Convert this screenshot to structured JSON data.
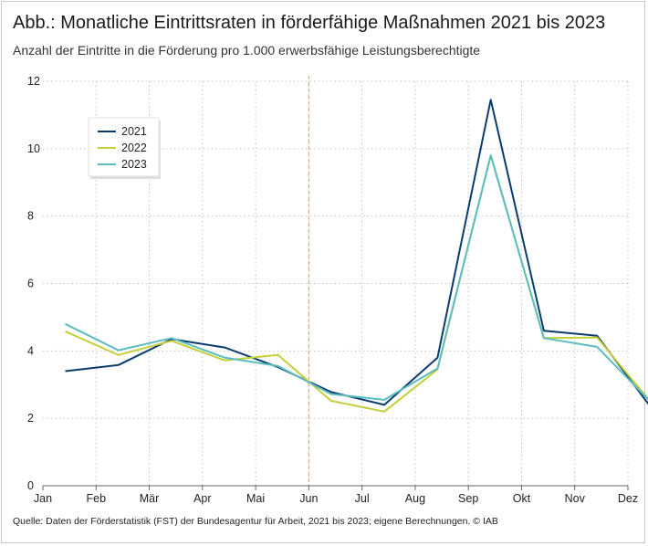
{
  "title": "Abb.: Monatliche Eintrittsraten in förderfähige Maßnahmen 2021 bis 2023",
  "subtitle": "Anzahl der Eintritte in die Förderung pro 1.000 erwerbsfähige Leistungsberechtigte",
  "source": "Quelle: Daten der Förderstatistik (FST) der Bundesagentur für Arbeit, 2021 bis 2023; eigene Berechnungen. © IAB",
  "chart_data": {
    "type": "line",
    "title": "Abb.: Monatliche Eintrittsraten in förderfähige Maßnahmen 2021 bis 2023",
    "subtitle": "Anzahl der Eintritte in die Förderung pro 1.000 erwerbsfähige Leistungsberechtigte",
    "xlabel": "",
    "ylabel": "",
    "x_ticks": [
      "Jan",
      "Feb",
      "Mär",
      "Apr",
      "Mai",
      "Jun",
      "Jul",
      "Aug",
      "Sep",
      "Okt",
      "Nov",
      "Dez"
    ],
    "categories": [
      "Jan",
      "Feb",
      "Mär",
      "Apr",
      "Mai",
      "Jun",
      "Jul",
      "Aug",
      "Sep",
      "Okt",
      "Nov",
      "Dez"
    ],
    "ylim": [
      0,
      12
    ],
    "y_ticks": [
      0,
      2,
      4,
      6,
      8,
      10,
      12
    ],
    "grid": true,
    "grid_style": "dotted",
    "reference_line": {
      "x": "Jun",
      "style": "dashed",
      "color": "#e0a070"
    },
    "legend": {
      "placement": "top-left",
      "entries": [
        "2021",
        "2022",
        "2023"
      ]
    },
    "series": [
      {
        "name": "2021",
        "color": "#0b3c6e",
        "values": [
          3.4,
          3.58,
          4.35,
          4.1,
          3.52,
          2.78,
          2.4,
          3.8,
          11.45,
          4.6,
          4.45,
          2.35
        ]
      },
      {
        "name": "2022",
        "color": "#c5cf3c",
        "values": [
          4.58,
          3.88,
          4.3,
          3.72,
          3.88,
          2.52,
          2.2,
          3.45,
          9.8,
          4.38,
          4.4,
          2.5
        ]
      },
      {
        "name": "2023",
        "color": "#5bbdbf",
        "values": [
          4.8,
          4.02,
          4.38,
          3.8,
          3.55,
          2.72,
          2.55,
          3.48,
          9.8,
          4.38,
          4.12,
          2.5
        ]
      }
    ]
  }
}
